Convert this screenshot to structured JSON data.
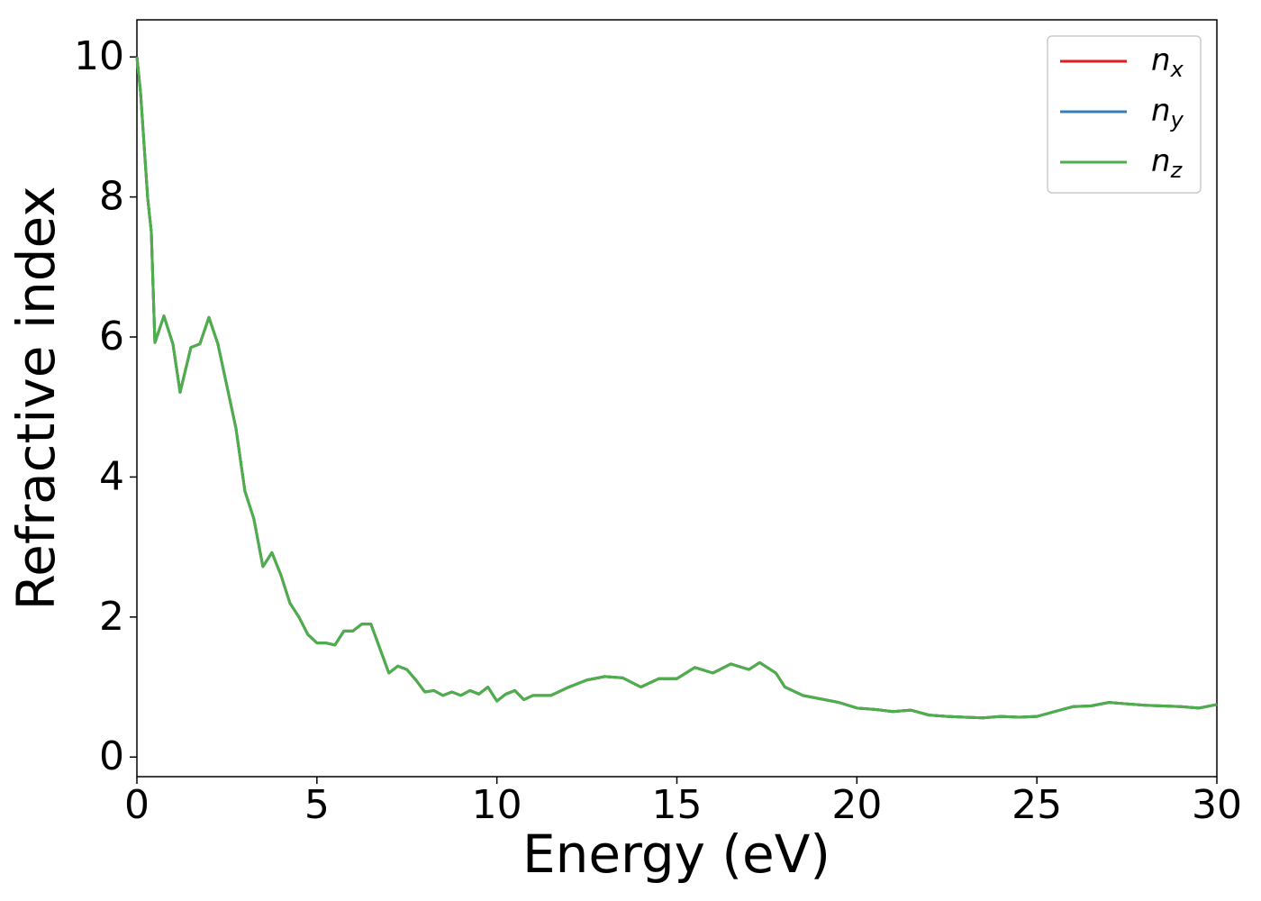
{
  "chart_data": {
    "type": "line",
    "xlabel": "Energy (eV)",
    "ylabel": "Refractive index",
    "x": [
      0,
      0.1,
      0.3,
      0.4,
      0.5,
      0.75,
      1.0,
      1.2,
      1.5,
      1.75,
      2.0,
      2.25,
      2.5,
      2.75,
      3.0,
      3.25,
      3.5,
      3.75,
      4.0,
      4.25,
      4.5,
      4.75,
      5.0,
      5.25,
      5.5,
      5.75,
      6.0,
      6.25,
      6.5,
      6.75,
      7.0,
      7.25,
      7.5,
      7.75,
      8.0,
      8.25,
      8.5,
      8.75,
      9.0,
      9.25,
      9.5,
      9.75,
      10.0,
      10.25,
      10.5,
      10.75,
      11,
      11.5,
      12,
      12.5,
      13,
      13.5,
      14,
      14.5,
      15,
      15.5,
      16,
      16.5,
      17,
      17.3,
      17.75,
      18,
      18.5,
      19,
      19.5,
      20,
      20.5,
      21,
      21.5,
      22,
      22.5,
      23,
      23.5,
      24,
      24.5,
      25,
      25.5,
      26,
      26.5,
      27,
      27.5,
      28,
      28.5,
      29,
      29.5,
      30
    ],
    "series": [
      {
        "name": "nx",
        "color": "#e41a1c",
        "values": [
          10.0,
          9.5,
          7.98,
          7.5,
          5.92,
          6.3,
          5.9,
          5.21,
          5.85,
          5.9,
          6.28,
          5.9,
          5.3,
          4.7,
          3.8,
          3.4,
          2.72,
          2.92,
          2.6,
          2.2,
          2.0,
          1.75,
          1.63,
          1.63,
          1.6,
          1.8,
          1.8,
          1.9,
          1.9,
          1.55,
          1.2,
          1.3,
          1.25,
          1.1,
          0.93,
          0.95,
          0.88,
          0.93,
          0.88,
          0.95,
          0.9,
          1.0,
          0.8,
          0.9,
          0.95,
          0.82,
          0.88,
          0.88,
          1.0,
          1.1,
          1.15,
          1.13,
          1.0,
          1.12,
          1.12,
          1.28,
          1.2,
          1.33,
          1.25,
          1.35,
          1.2,
          1.0,
          0.88,
          0.83,
          0.78,
          0.7,
          0.68,
          0.65,
          0.67,
          0.6,
          0.58,
          0.57,
          0.56,
          0.58,
          0.57,
          0.58,
          0.65,
          0.72,
          0.73,
          0.78,
          0.76,
          0.74,
          0.73,
          0.72,
          0.7,
          0.75
        ]
      },
      {
        "name": "ny",
        "color": "#377eb8",
        "values": [
          10.0,
          9.5,
          7.98,
          7.5,
          5.92,
          6.3,
          5.9,
          5.21,
          5.85,
          5.9,
          6.28,
          5.9,
          5.3,
          4.7,
          3.8,
          3.4,
          2.72,
          2.92,
          2.6,
          2.2,
          2.0,
          1.75,
          1.63,
          1.63,
          1.6,
          1.8,
          1.8,
          1.9,
          1.9,
          1.55,
          1.2,
          1.3,
          1.25,
          1.1,
          0.93,
          0.95,
          0.88,
          0.93,
          0.88,
          0.95,
          0.9,
          1.0,
          0.8,
          0.9,
          0.95,
          0.82,
          0.88,
          0.88,
          1.0,
          1.1,
          1.15,
          1.13,
          1.0,
          1.12,
          1.12,
          1.28,
          1.2,
          1.33,
          1.25,
          1.35,
          1.2,
          1.0,
          0.88,
          0.83,
          0.78,
          0.7,
          0.68,
          0.65,
          0.67,
          0.6,
          0.58,
          0.57,
          0.56,
          0.58,
          0.57,
          0.58,
          0.65,
          0.72,
          0.73,
          0.78,
          0.76,
          0.74,
          0.73,
          0.72,
          0.7,
          0.75
        ]
      },
      {
        "name": "nz",
        "color": "#4daf4a",
        "values": [
          10.0,
          9.5,
          7.98,
          7.5,
          5.92,
          6.3,
          5.9,
          5.21,
          5.85,
          5.9,
          6.28,
          5.9,
          5.3,
          4.7,
          3.8,
          3.4,
          2.72,
          2.92,
          2.6,
          2.2,
          2.0,
          1.75,
          1.63,
          1.63,
          1.6,
          1.8,
          1.8,
          1.9,
          1.9,
          1.55,
          1.2,
          1.3,
          1.25,
          1.1,
          0.93,
          0.95,
          0.88,
          0.93,
          0.88,
          0.95,
          0.9,
          1.0,
          0.8,
          0.9,
          0.95,
          0.82,
          0.88,
          0.88,
          1.0,
          1.1,
          1.15,
          1.13,
          1.0,
          1.12,
          1.12,
          1.28,
          1.2,
          1.33,
          1.25,
          1.35,
          1.2,
          1.0,
          0.88,
          0.83,
          0.78,
          0.7,
          0.68,
          0.65,
          0.67,
          0.6,
          0.58,
          0.57,
          0.56,
          0.58,
          0.57,
          0.58,
          0.65,
          0.72,
          0.73,
          0.78,
          0.76,
          0.74,
          0.73,
          0.72,
          0.7,
          0.75
        ]
      }
    ],
    "xlim": [
      0,
      30
    ],
    "xticks": [
      0,
      5,
      10,
      15,
      20,
      25,
      30
    ],
    "ylim": [
      -0.28,
      10.53
    ],
    "yticks": [
      0,
      2,
      4,
      6,
      8,
      10
    ],
    "grid": false,
    "legend": "upper right"
  }
}
